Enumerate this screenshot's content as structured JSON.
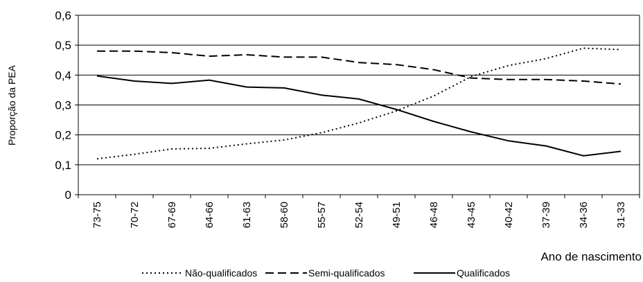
{
  "chart_data": {
    "type": "line",
    "y_label": "Proporção da PEA",
    "x_label": "Ano de nascimento",
    "categories": [
      "73-75",
      "70-72",
      "67-69",
      "64-66",
      "61-63",
      "58-60",
      "55-57",
      "52-54",
      "49-51",
      "46-48",
      "43-45",
      "40-42",
      "37-39",
      "34-36",
      "31-33"
    ],
    "series": [
      {
        "name": "Não-qualificados",
        "color": "#000000",
        "dash": "dotted",
        "values": [
          0.12,
          0.135,
          0.153,
          0.155,
          0.17,
          0.183,
          0.207,
          0.24,
          0.28,
          0.33,
          0.395,
          0.432,
          0.455,
          0.49,
          0.485
        ]
      },
      {
        "name": "Semi-qualificados",
        "color": "#000000",
        "dash": "dashed",
        "values": [
          0.48,
          0.48,
          0.475,
          0.463,
          0.468,
          0.46,
          0.46,
          0.442,
          0.435,
          0.418,
          0.39,
          0.385,
          0.385,
          0.38,
          0.37
        ]
      },
      {
        "name": "Qualificados",
        "color": "#000000",
        "dash": "solid",
        "values": [
          0.397,
          0.38,
          0.372,
          0.383,
          0.36,
          0.357,
          0.333,
          0.32,
          0.285,
          0.245,
          0.21,
          0.18,
          0.163,
          0.13,
          0.145
        ]
      }
    ],
    "ylim": [
      0,
      0.6
    ],
    "yticks": [
      0,
      {
        "value": 0.1,
        "label": "0,1"
      },
      {
        "value": 0.2,
        "label": "0,2"
      },
      {
        "value": 0.3,
        "label": "0,3"
      },
      {
        "value": 0.4,
        "label": "0,4"
      },
      {
        "value": 0.5,
        "label": "0,5"
      },
      {
        "value": 0.6,
        "label": "0,6"
      }
    ],
    "grid": true
  }
}
